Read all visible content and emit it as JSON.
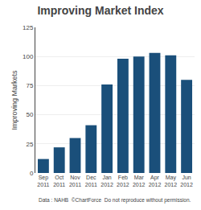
{
  "chart_data": {
    "type": "bar",
    "title": "Improving Market Index",
    "categories": [
      "Sep\n2011",
      "Oct\n2011",
      "Nov\n2011",
      "Dec\n2011",
      "Jan\n2012",
      "Feb\n2012",
      "Mar\n2012",
      "Apr\n2012",
      "May\n2012",
      "Jun\n2012"
    ],
    "values": [
      12,
      22,
      30,
      41,
      76,
      98,
      100,
      103,
      101,
      80
    ],
    "color": "#1a4f7a",
    "ylabel": "Improving Markets",
    "ylim": [
      0,
      125
    ],
    "yticks": [
      0,
      25,
      50,
      75,
      100,
      125
    ],
    "grid": true,
    "footnote": "Data : NAHB  ©ChartForce  Do not reproduce without permission."
  }
}
